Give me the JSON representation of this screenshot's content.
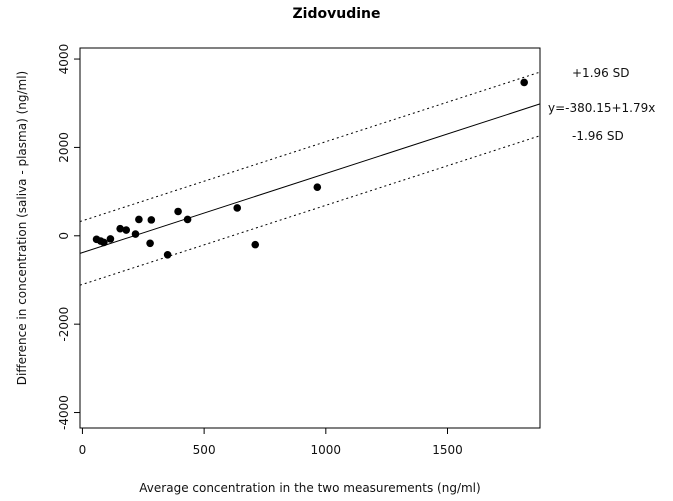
{
  "chart_data": {
    "type": "scatter",
    "title": "Zidovudine",
    "xlabel": "Average concentration in the two measurements (ng/ml)",
    "ylabel": "Difference in concentration (saliva - plasma) (ng/ml)",
    "xlim": [
      -10,
      1880
    ],
    "ylim": [
      -4350,
      4250
    ],
    "xticks": [
      0,
      500,
      1000,
      1500
    ],
    "yticks": [
      -4000,
      -2000,
      0,
      2000,
      4000
    ],
    "grid": false,
    "points": [
      {
        "x": 58,
        "y": -80
      },
      {
        "x": 75,
        "y": -120
      },
      {
        "x": 88,
        "y": -150
      },
      {
        "x": 115,
        "y": -70
      },
      {
        "x": 155,
        "y": 160
      },
      {
        "x": 180,
        "y": 130
      },
      {
        "x": 218,
        "y": 40
      },
      {
        "x": 232,
        "y": 370
      },
      {
        "x": 278,
        "y": -170
      },
      {
        "x": 283,
        "y": 360
      },
      {
        "x": 350,
        "y": -430
      },
      {
        "x": 393,
        "y": 550
      },
      {
        "x": 432,
        "y": 370
      },
      {
        "x": 636,
        "y": 630
      },
      {
        "x": 710,
        "y": -200
      },
      {
        "x": 965,
        "y": 1100
      },
      {
        "x": 1815,
        "y": 3470
      }
    ],
    "regression": {
      "intercept": -380.15,
      "slope": 1.79,
      "label": "y=-380.15+1.79x"
    },
    "upper_limit": {
      "intercept": 340,
      "slope": 1.79,
      "label": "+1.96 SD"
    },
    "lower_limit": {
      "intercept": -1100,
      "slope": 1.79,
      "label": "-1.96 SD"
    }
  }
}
